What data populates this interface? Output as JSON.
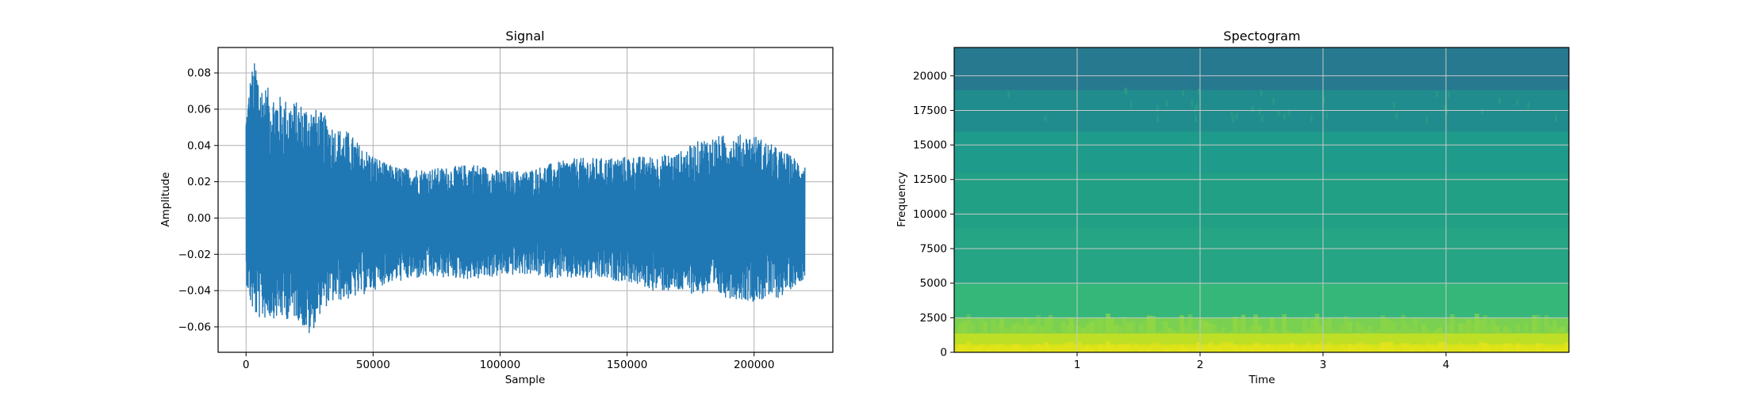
{
  "chart_data": [
    {
      "type": "line",
      "title": "Signal",
      "xlabel": "Sample",
      "ylabel": "Amplitude",
      "xlim": [
        -11000,
        231000
      ],
      "ylim": [
        -0.074,
        0.094
      ],
      "xticks": [
        0,
        50000,
        100000,
        150000,
        200000
      ],
      "xtick_labels": [
        "0",
        "50000",
        "100000",
        "150000",
        "200000"
      ],
      "yticks": [
        -0.06,
        -0.04,
        -0.02,
        0.0,
        0.02,
        0.04,
        0.06,
        0.08
      ],
      "ytick_labels": [
        "−0.06",
        "−0.04",
        "−0.02",
        "0.00",
        "0.02",
        "0.04",
        "0.06",
        "0.08"
      ],
      "grid": true,
      "color": "#1f77b4",
      "series": [
        {
          "x": [
            0,
            2000,
            4000,
            6000,
            10000,
            15000,
            20000,
            25000,
            30000,
            35000,
            40000,
            45000,
            50000,
            55000,
            60000,
            70000,
            80000,
            90000,
            100000,
            110000,
            120000,
            130000,
            140000,
            150000,
            160000,
            170000,
            180000,
            190000,
            200000,
            210000,
            220000
          ],
          "ymax": [
            0.06,
            0.082,
            0.088,
            0.075,
            0.07,
            0.066,
            0.064,
            0.062,
            0.058,
            0.05,
            0.048,
            0.04,
            0.035,
            0.03,
            0.028,
            0.027,
            0.028,
            0.03,
            0.026,
            0.026,
            0.03,
            0.033,
            0.033,
            0.034,
            0.034,
            0.036,
            0.044,
            0.046,
            0.046,
            0.038,
            0.03
          ],
          "ymin": [
            -0.035,
            -0.05,
            -0.055,
            -0.056,
            -0.055,
            -0.056,
            -0.055,
            -0.066,
            -0.05,
            -0.046,
            -0.045,
            -0.043,
            -0.04,
            -0.036,
            -0.035,
            -0.033,
            -0.033,
            -0.034,
            -0.032,
            -0.031,
            -0.033,
            -0.034,
            -0.034,
            -0.035,
            -0.04,
            -0.041,
            -0.042,
            -0.044,
            -0.046,
            -0.044,
            -0.033
          ]
        }
      ]
    },
    {
      "type": "heatmap",
      "title": "Spectogram",
      "xlabel": "Time",
      "ylabel": "Frequency",
      "xlim": [
        0,
        5.0
      ],
      "ylim": [
        0,
        22050
      ],
      "xticks": [
        1,
        2,
        3,
        4
      ],
      "xtick_labels": [
        "1",
        "2",
        "3",
        "4"
      ],
      "yticks": [
        0,
        2500,
        5000,
        7500,
        10000,
        12500,
        15000,
        17500,
        20000
      ],
      "ytick_labels": [
        "0",
        "2500",
        "5000",
        "7500",
        "10000",
        "12500",
        "15000",
        "17500",
        "20000"
      ],
      "grid": true,
      "colormap": "viridis",
      "bands": [
        {
          "f_low": 0,
          "f_high": 600,
          "color": "#d8e219"
        },
        {
          "f_low": 600,
          "f_high": 1400,
          "color": "#bddf26"
        },
        {
          "f_low": 1400,
          "f_high": 2500,
          "color": "#7ad151"
        },
        {
          "f_low": 2500,
          "f_high": 5000,
          "color": "#35b779"
        },
        {
          "f_low": 5000,
          "f_high": 9000,
          "color": "#25a584"
        },
        {
          "f_low": 9000,
          "f_high": 13000,
          "color": "#21a085"
        },
        {
          "f_low": 13000,
          "f_high": 16000,
          "color": "#1e9b8a"
        },
        {
          "f_low": 16000,
          "f_high": 19000,
          "color": "#218c8d"
        },
        {
          "f_low": 19000,
          "f_high": 22050,
          "color": "#26798e"
        }
      ]
    }
  ]
}
